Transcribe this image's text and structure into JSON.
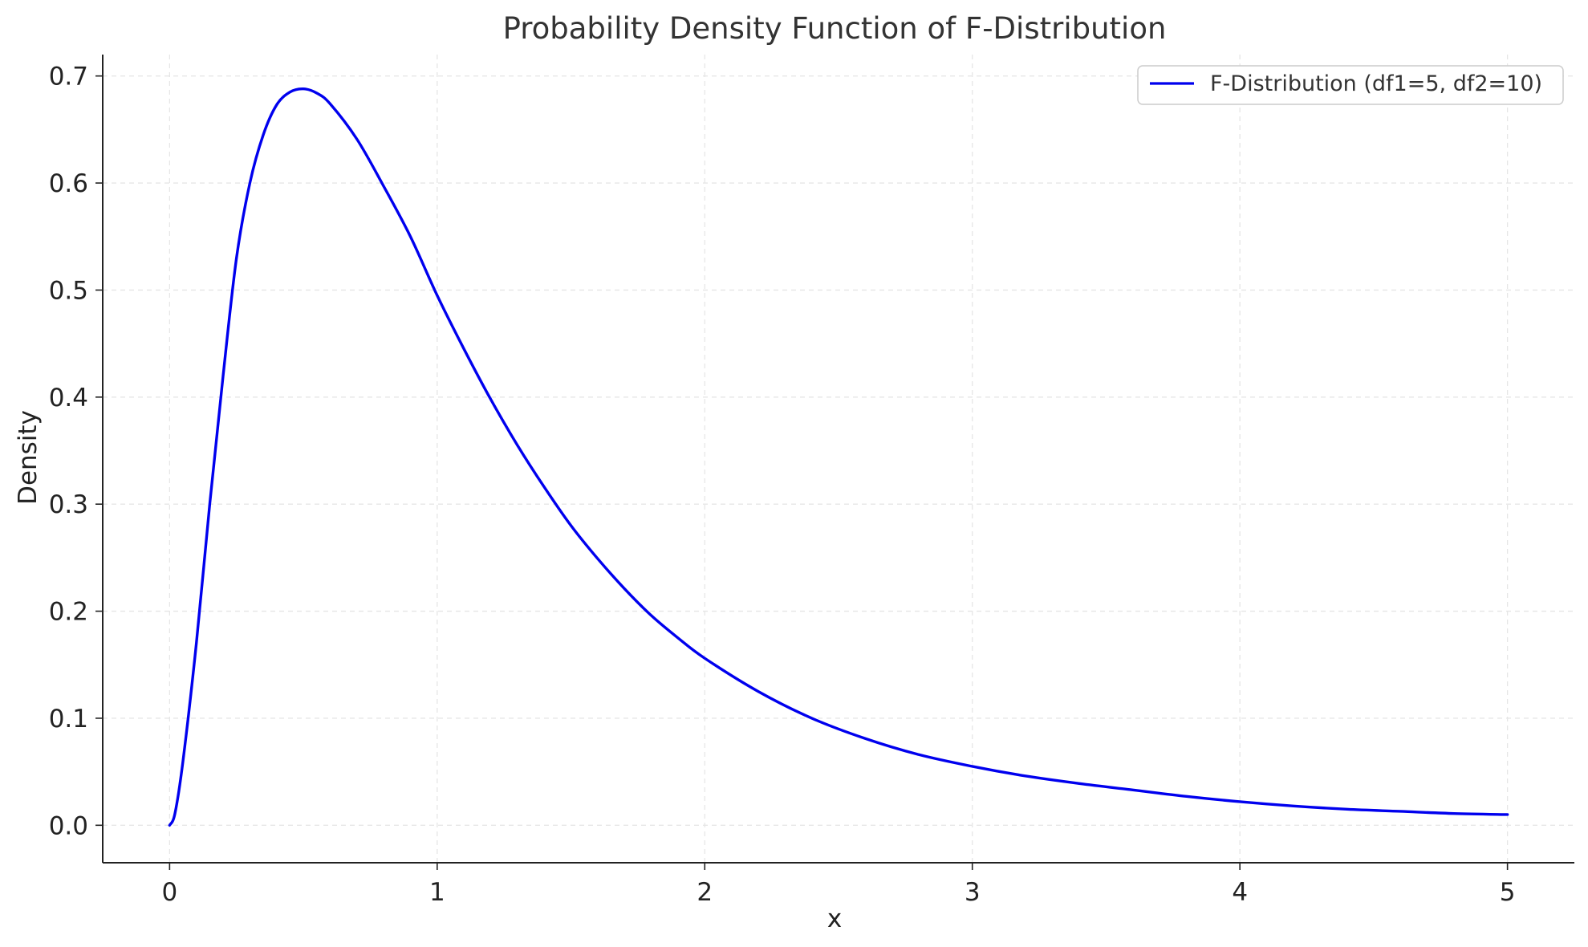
{
  "chart_data": {
    "type": "line",
    "title": "Probability Density Function of F-Distribution",
    "xlabel": "x",
    "ylabel": "Density",
    "xlim": [
      -0.25,
      5.25
    ],
    "ylim": [
      -0.035,
      0.72
    ],
    "x_ticks": [
      0,
      1,
      2,
      3,
      4,
      5
    ],
    "y_ticks": [
      0.0,
      0.1,
      0.2,
      0.3,
      0.4,
      0.5,
      0.6,
      0.7
    ],
    "x_tick_labels": [
      "0",
      "1",
      "2",
      "3",
      "4",
      "5"
    ],
    "y_tick_labels": [
      "0.0",
      "0.1",
      "0.2",
      "0.3",
      "0.4",
      "0.5",
      "0.6",
      "0.7"
    ],
    "grid": true,
    "legend_position": "top-right",
    "series": [
      {
        "name": "F-Distribution (df1=5, df2=10)",
        "color": "#0000ee",
        "x": [
          0,
          0.02,
          0.05,
          0.1,
          0.15,
          0.2,
          0.25,
          0.3,
          0.35,
          0.4,
          0.45,
          0.5,
          0.55,
          0.6,
          0.7,
          0.8,
          0.9,
          1.0,
          1.1,
          1.2,
          1.3,
          1.4,
          1.5,
          1.6,
          1.7,
          1.8,
          1.9,
          2.0,
          2.2,
          2.4,
          2.6,
          2.8,
          3.0,
          3.2,
          3.4,
          3.6,
          3.8,
          4.0,
          4.2,
          4.4,
          4.6,
          4.8,
          5.0
        ],
        "values": [
          0,
          0.011,
          0.06,
          0.17,
          0.3,
          0.42,
          0.53,
          0.6,
          0.645,
          0.673,
          0.685,
          0.688,
          0.684,
          0.674,
          0.641,
          0.597,
          0.55,
          0.495,
          0.445,
          0.398,
          0.355,
          0.316,
          0.28,
          0.249,
          0.221,
          0.196,
          0.175,
          0.156,
          0.125,
          0.1,
          0.081,
          0.066,
          0.055,
          0.046,
          0.039,
          0.033,
          0.027,
          0.022,
          0.018,
          0.015,
          0.013,
          0.011,
          0.01
        ]
      }
    ]
  }
}
